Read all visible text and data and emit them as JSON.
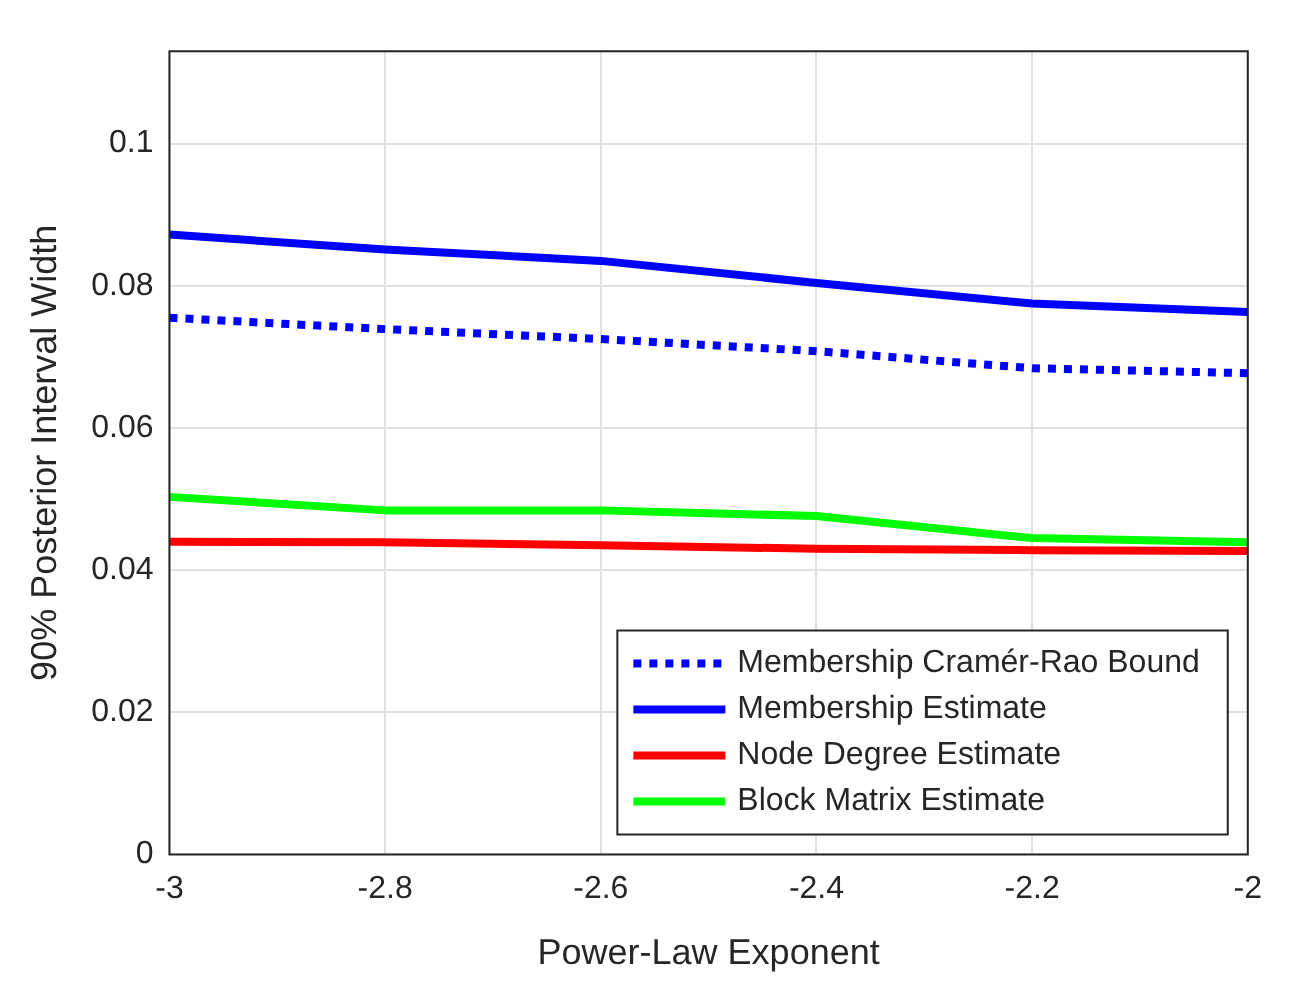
{
  "chart_data": {
    "type": "line",
    "xlabel": "Power-Law Exponent",
    "ylabel": "90% Posterior Interval Width",
    "x": [
      -3,
      -2.8,
      -2.6,
      -2.4,
      -2.2,
      -2
    ],
    "series": [
      {
        "name": "Membership Cramér-Rao Bound",
        "color": "#0000ff",
        "line_style": "dotted",
        "values": [
          0.0755,
          0.0739,
          0.0725,
          0.0708,
          0.0684,
          0.0677
        ]
      },
      {
        "name": "Membership Estimate",
        "color": "#0000ff",
        "line_style": "solid",
        "values": [
          0.0872,
          0.0851,
          0.0835,
          0.0804,
          0.0775,
          0.0763
        ]
      },
      {
        "name": "Node Degree Estimate",
        "color": "#ff0000",
        "line_style": "solid",
        "values": [
          0.044,
          0.0439,
          0.0435,
          0.043,
          0.0428,
          0.0427
        ]
      },
      {
        "name": "Block Matrix Estimate",
        "color": "#00ff00",
        "line_style": "solid",
        "values": [
          0.0503,
          0.0484,
          0.0484,
          0.0476,
          0.0445,
          0.0439
        ]
      }
    ],
    "xlim": [
      -3,
      -2
    ],
    "xticks": [
      -3,
      -2.8,
      -2.6,
      -2.4,
      -2.2,
      -2
    ],
    "ylim": [
      0,
      0.113
    ],
    "yticks": [
      0,
      0.02,
      0.04,
      0.06,
      0.08,
      0.1
    ],
    "grid": true,
    "legend": "bottom right",
    "marker": "none"
  }
}
